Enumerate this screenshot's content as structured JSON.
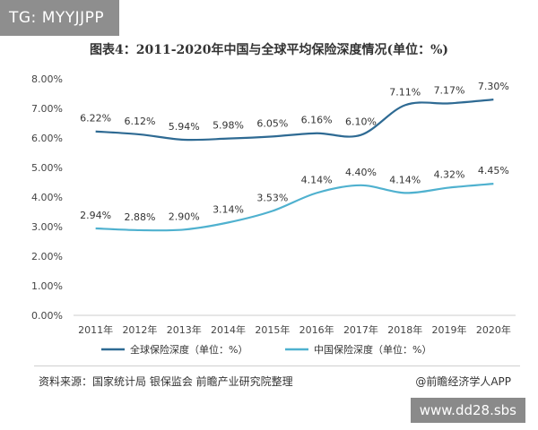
{
  "tag_label": "TG: MYYJJPP",
  "watermark_site": "www.dd28.sbs",
  "source": "资料来源：国家统计局 银保监会 前瞻产业研究院整理",
  "brand": "@前瞻经济学人APP",
  "chart_data": {
    "type": "line",
    "title": "图表4：2011-2020年中国与全球平均保险深度情况(单位：%)",
    "xlabel": "",
    "ylabel": "",
    "categories": [
      "2011年",
      "2012年",
      "2013年",
      "2014年",
      "2015年",
      "2016年",
      "2017年",
      "2018年",
      "2019年",
      "2020年"
    ],
    "ylim": [
      0,
      8
    ],
    "yticks": [
      "0.00%",
      "1.00%",
      "2.00%",
      "3.00%",
      "4.00%",
      "5.00%",
      "6.00%",
      "7.00%",
      "8.00%"
    ],
    "grid": false,
    "legend": "bottom",
    "series": [
      {
        "name": "全球保险深度（单位：%）",
        "color": "#2e6a93",
        "values": [
          6.22,
          6.12,
          5.94,
          5.98,
          6.05,
          6.16,
          6.1,
          7.11,
          7.17,
          7.3
        ],
        "labels": [
          "6.22%",
          "6.12%",
          "5.94%",
          "5.98%",
          "6.05%",
          "6.16%",
          "6.10%",
          "7.11%",
          "7.17%",
          "7.30%"
        ]
      },
      {
        "name": "中国保险深度（单位：%）",
        "color": "#4fb1cf",
        "values": [
          2.94,
          2.88,
          2.9,
          3.14,
          3.53,
          4.14,
          4.4,
          4.14,
          4.32,
          4.45
        ],
        "labels": [
          "2.94%",
          "2.88%",
          "2.90%",
          "3.14%",
          "3.53%",
          "4.14%",
          "4.40%",
          "4.14%",
          "4.32%",
          "4.45%"
        ]
      }
    ]
  }
}
